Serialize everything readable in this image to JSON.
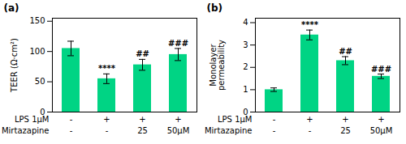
{
  "chart_data": [
    {
      "type": "bar",
      "title": "(a)",
      "ylabel": "TEER (Ω·cm²)",
      "values": [
        105,
        55,
        78,
        95
      ],
      "errors": [
        12,
        8,
        9,
        10
      ],
      "color": "#00D484",
      "ylim": [
        0,
        155
      ],
      "yticks": [
        0,
        50,
        100,
        150
      ],
      "annotations": [
        null,
        "****",
        "##",
        "###"
      ],
      "category_rows": [
        {
          "label": "LPS 1μM",
          "categories": [
            "-",
            "+",
            "+",
            "+"
          ]
        },
        {
          "label": "Mirtazapine",
          "categories": [
            "-",
            "-",
            "25",
            "50μM"
          ]
        }
      ]
    },
    {
      "type": "bar",
      "title": "(b)",
      "ylabel": "Monolayer\npermeability",
      "values": [
        1.0,
        3.45,
        2.3,
        1.6
      ],
      "errors": [
        0.08,
        0.22,
        0.18,
        0.1
      ],
      "color": "#00D484",
      "ylim": [
        0,
        4.2
      ],
      "yticks": [
        0,
        1,
        2,
        3,
        4
      ],
      "annotations": [
        null,
        "****",
        "##",
        "###"
      ],
      "category_rows": [
        {
          "label": "LPS 1μM",
          "categories": [
            "-",
            "+",
            "+",
            "+"
          ]
        },
        {
          "label": "Mirtazapine",
          "categories": [
            "-",
            "-",
            "25",
            "50μM"
          ]
        }
      ]
    }
  ]
}
